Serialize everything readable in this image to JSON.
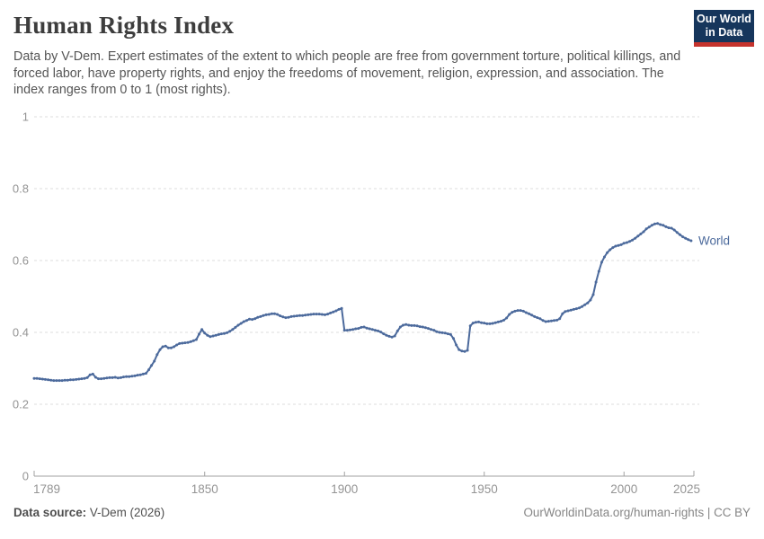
{
  "header": {
    "title": "Human Rights Index",
    "subtitle": "Data by V-Dem. Expert estimates of the extent to which people are free from government torture, political killings, and forced labor, have property rights, and enjoy the freedoms of movement, religion, expression, and association. The index ranges from 0 to 1 (most rights).",
    "logo": {
      "line1": "Our World",
      "line2": "in Data"
    }
  },
  "footer": {
    "source_label": "Data source:",
    "source_value": " V-Dem (2026)",
    "credit": "OurWorldinData.org/human-rights | CC BY"
  },
  "colors": {
    "series": "#4c6a9c",
    "grid": "#dddddd",
    "axis": "#a1a1a1",
    "tick_label": "#949494",
    "logo_navy": "#16365c",
    "logo_red": "#c5332d"
  },
  "chart_data": {
    "type": "line",
    "title": "Human Rights Index",
    "xlabel": "",
    "ylabel": "",
    "xlim": [
      1789,
      2025
    ],
    "ylim": [
      0,
      1
    ],
    "x_ticks": [
      1789,
      1850,
      1900,
      1950,
      2000,
      2025
    ],
    "y_ticks": [
      0,
      0.2,
      0.4,
      0.6,
      0.8,
      1
    ],
    "grid": "dashed-horizontal",
    "legend_position": "end-of-line-label",
    "series": [
      {
        "name": "World",
        "color": "#4c6a9c",
        "start_year": 1789,
        "end_year": 2024,
        "values": [
          0.272,
          0.272,
          0.271,
          0.27,
          0.269,
          0.268,
          0.267,
          0.266,
          0.266,
          0.266,
          0.266,
          0.267,
          0.267,
          0.268,
          0.268,
          0.269,
          0.27,
          0.271,
          0.272,
          0.274,
          0.282,
          0.284,
          0.275,
          0.271,
          0.271,
          0.272,
          0.273,
          0.274,
          0.274,
          0.275,
          0.273,
          0.274,
          0.276,
          0.277,
          0.277,
          0.278,
          0.279,
          0.281,
          0.282,
          0.284,
          0.286,
          0.296,
          0.308,
          0.32,
          0.338,
          0.352,
          0.36,
          0.362,
          0.357,
          0.357,
          0.36,
          0.365,
          0.369,
          0.37,
          0.371,
          0.372,
          0.374,
          0.377,
          0.38,
          0.395,
          0.408,
          0.398,
          0.392,
          0.388,
          0.39,
          0.392,
          0.394,
          0.396,
          0.397,
          0.399,
          0.403,
          0.408,
          0.414,
          0.42,
          0.425,
          0.43,
          0.433,
          0.437,
          0.436,
          0.438,
          0.442,
          0.444,
          0.447,
          0.449,
          0.45,
          0.452,
          0.452,
          0.45,
          0.446,
          0.443,
          0.441,
          0.442,
          0.444,
          0.445,
          0.446,
          0.447,
          0.447,
          0.448,
          0.449,
          0.45,
          0.451,
          0.451,
          0.451,
          0.45,
          0.449,
          0.451,
          0.454,
          0.457,
          0.46,
          0.464,
          0.467,
          0.406,
          0.406,
          0.407,
          0.408,
          0.41,
          0.411,
          0.414,
          0.415,
          0.412,
          0.41,
          0.408,
          0.406,
          0.404,
          0.401,
          0.396,
          0.392,
          0.389,
          0.387,
          0.39,
          0.404,
          0.415,
          0.42,
          0.422,
          0.42,
          0.419,
          0.419,
          0.418,
          0.416,
          0.415,
          0.413,
          0.411,
          0.408,
          0.406,
          0.402,
          0.4,
          0.399,
          0.398,
          0.396,
          0.394,
          0.383,
          0.365,
          0.352,
          0.348,
          0.347,
          0.35,
          0.418,
          0.426,
          0.428,
          0.429,
          0.427,
          0.426,
          0.424,
          0.424,
          0.425,
          0.427,
          0.429,
          0.431,
          0.434,
          0.44,
          0.45,
          0.456,
          0.459,
          0.461,
          0.461,
          0.459,
          0.455,
          0.452,
          0.448,
          0.444,
          0.441,
          0.438,
          0.433,
          0.43,
          0.431,
          0.432,
          0.433,
          0.434,
          0.438,
          0.452,
          0.458,
          0.46,
          0.462,
          0.464,
          0.466,
          0.468,
          0.472,
          0.477,
          0.482,
          0.49,
          0.505,
          0.54,
          0.57,
          0.595,
          0.61,
          0.622,
          0.63,
          0.636,
          0.64,
          0.642,
          0.644,
          0.648,
          0.65,
          0.653,
          0.657,
          0.662,
          0.668,
          0.674,
          0.68,
          0.688,
          0.693,
          0.698,
          0.702,
          0.703,
          0.7,
          0.698,
          0.694,
          0.691,
          0.69,
          0.685,
          0.678,
          0.672,
          0.666,
          0.662,
          0.658,
          0.655
        ]
      }
    ]
  }
}
